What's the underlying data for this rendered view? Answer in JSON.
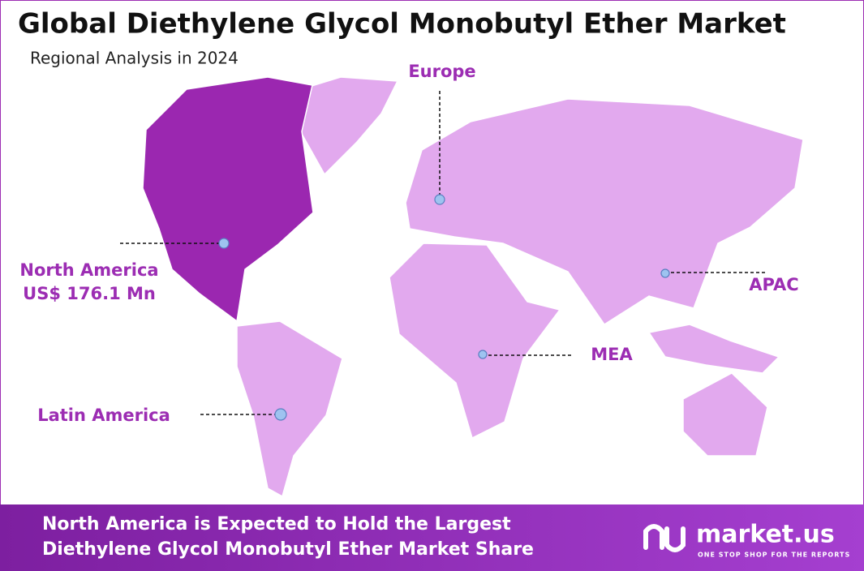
{
  "header": {
    "title": "Global Diethylene Glycol Monobutyl Ether Market",
    "subtitle": "Regional Analysis in 2024"
  },
  "regions": [
    {
      "label": "North America",
      "value_label": "US$ 176.1 Mn"
    },
    {
      "label": "Europe"
    },
    {
      "label": "APAC"
    },
    {
      "label": "MEA"
    },
    {
      "label": "Latin America"
    }
  ],
  "footer": {
    "lines": [
      "North America is Expected to Hold the Largest",
      "Diethylene Glycol Monobutyl Ether Market Share"
    ]
  },
  "logo": {
    "name": "market.us",
    "tagline": "ONE STOP SHOP FOR THE REPORTS"
  }
}
